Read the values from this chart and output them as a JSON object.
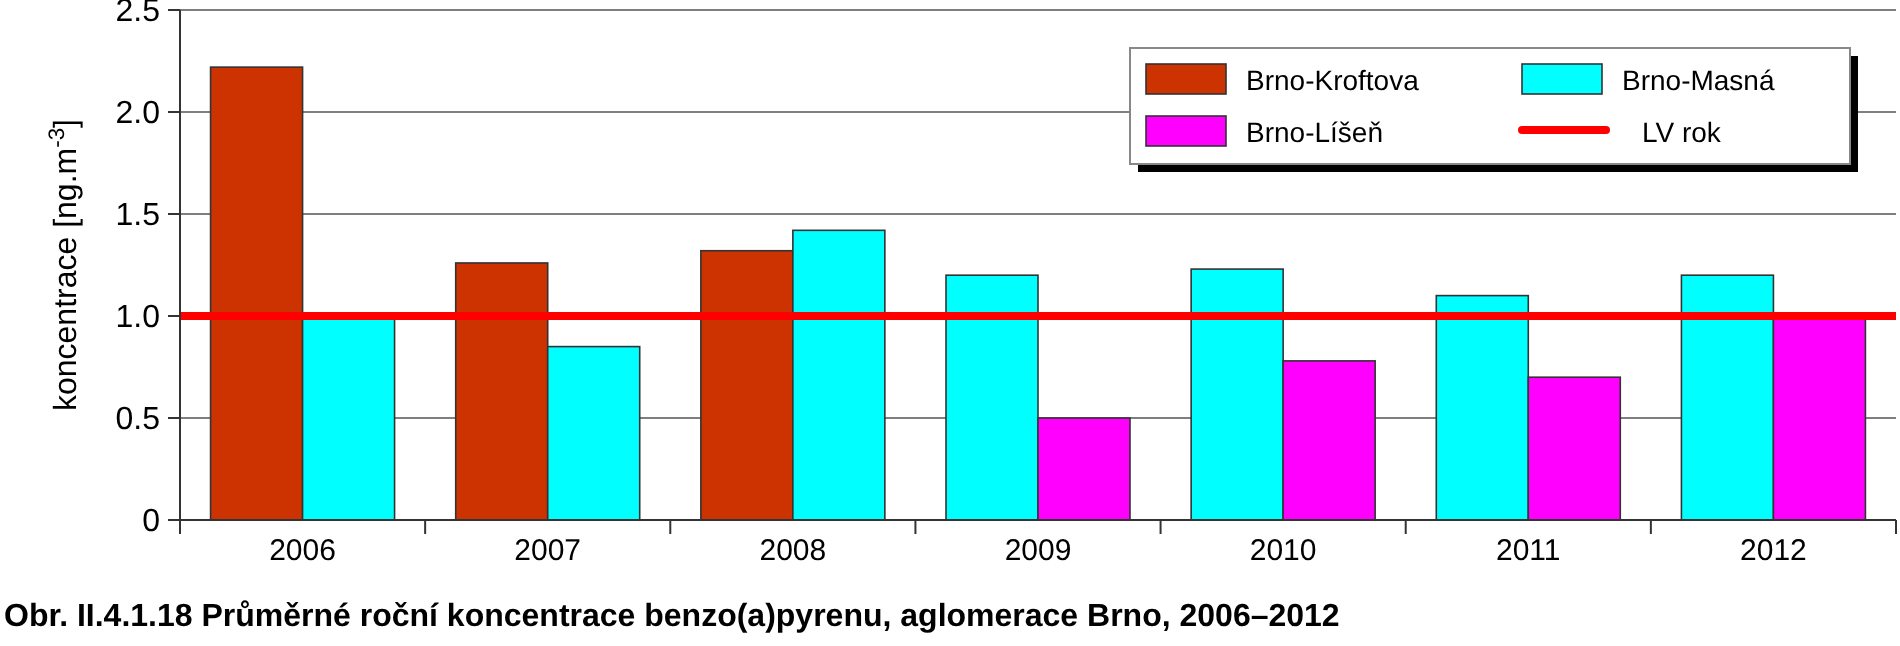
{
  "chart_data": {
    "type": "bar",
    "title": "Obr. II.4.1.18  Průměrné roční koncentrace benzo(a)pyrenu, aglomerace Brno, 2006–2012",
    "ylabel": "koncentrace [ng.m$^{-3}$]",
    "categories": [
      "2006",
      "2007",
      "2008",
      "2009",
      "2010",
      "2011",
      "2012"
    ],
    "series": [
      {
        "name": "Brno-Kroftova",
        "color": "#cc3300",
        "values": [
          2.22,
          1.26,
          1.32,
          null,
          null,
          null,
          null
        ]
      },
      {
        "name": "Brno-Masná",
        "color": "#00ffff",
        "values": [
          0.99,
          0.85,
          1.42,
          1.2,
          1.23,
          1.1,
          1.2
        ]
      },
      {
        "name": "Brno-Líšeň",
        "color": "#ff00ff",
        "values": [
          null,
          null,
          null,
          0.5,
          0.78,
          0.7,
          0.99
        ]
      }
    ],
    "ref_lines": [
      {
        "axis": "y",
        "value": 1.0,
        "label": "LV rok",
        "color": "#ff0000"
      }
    ],
    "ylim": [
      0,
      2.5
    ],
    "yticks": [
      {
        "value": 0,
        "label": "0"
      },
      {
        "value": 0.5,
        "label": "0.5"
      },
      {
        "value": 1,
        "label": "1.0"
      },
      {
        "value": 1.5,
        "label": "1.5"
      },
      {
        "value": 2,
        "label": "2.0"
      },
      {
        "value": 2.5,
        "label": "2.5"
      }
    ],
    "grid": "y",
    "legend": "top right"
  }
}
